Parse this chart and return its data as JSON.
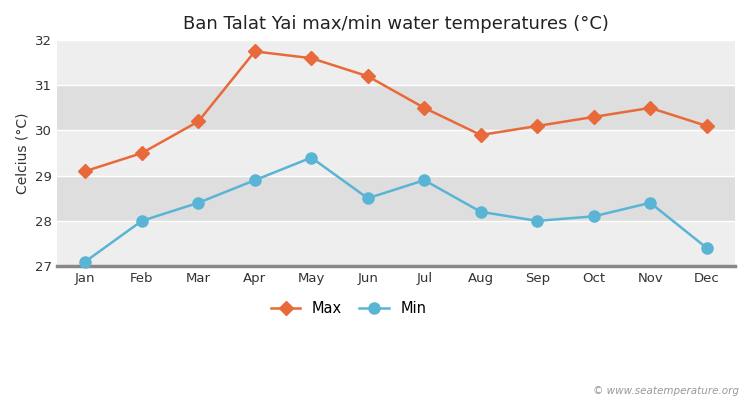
{
  "title": "Ban Talat Yai max/min water temperatures (°C)",
  "ylabel": "Celcius (°C)",
  "months": [
    "Jan",
    "Feb",
    "Mar",
    "Apr",
    "May",
    "Jun",
    "Jul",
    "Aug",
    "Sep",
    "Oct",
    "Nov",
    "Dec"
  ],
  "max_values": [
    29.1,
    29.5,
    30.2,
    31.75,
    31.6,
    31.2,
    30.5,
    29.9,
    30.1,
    30.3,
    30.5,
    30.1
  ],
  "min_values": [
    27.1,
    28.0,
    28.4,
    28.9,
    29.4,
    28.5,
    28.9,
    28.2,
    28.0,
    28.1,
    28.4,
    27.4
  ],
  "max_color": "#e8693a",
  "min_color": "#5ab4d6",
  "bg_color": "#ffffff",
  "stripe_light": "#eeeeee",
  "stripe_dark": "#dedede",
  "grid_color": "#ffffff",
  "bottom_spine_color": "#888888",
  "ylim": [
    27,
    32
  ],
  "yticks": [
    27,
    28,
    29,
    30,
    31,
    32
  ],
  "legend_max": "Max",
  "legend_min": "Min",
  "watermark": "© www.seatemperature.org",
  "title_fontsize": 13,
  "label_fontsize": 10,
  "tick_fontsize": 9.5,
  "marker_size_max": 7,
  "marker_size_min": 8,
  "line_width": 1.8
}
